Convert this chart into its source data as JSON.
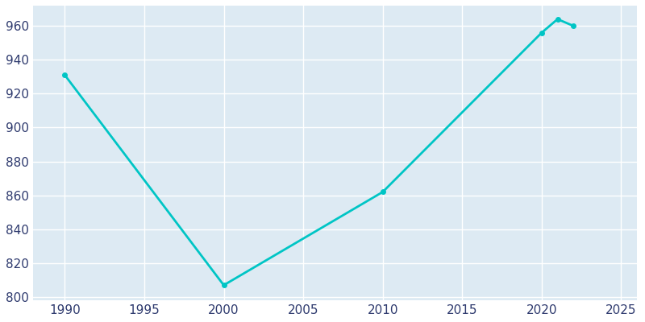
{
  "years": [
    1990,
    2000,
    2010,
    2020,
    2021,
    2022
  ],
  "population": [
    931,
    807,
    862,
    956,
    964,
    960
  ],
  "line_color": "#00C5C5",
  "marker": "o",
  "marker_size": 4,
  "line_width": 2,
  "xlim": [
    1988,
    2026
  ],
  "ylim": [
    798,
    972
  ],
  "xticks": [
    1990,
    1995,
    2000,
    2005,
    2010,
    2015,
    2020,
    2025
  ],
  "yticks": [
    800,
    820,
    840,
    860,
    880,
    900,
    920,
    940,
    960
  ],
  "plot_bg_color": "#ddeaf3",
  "fig_bg_color": "#ffffff",
  "grid_color": "#ffffff",
  "tick_color": "#2e3a6e",
  "tick_fontsize": 11
}
